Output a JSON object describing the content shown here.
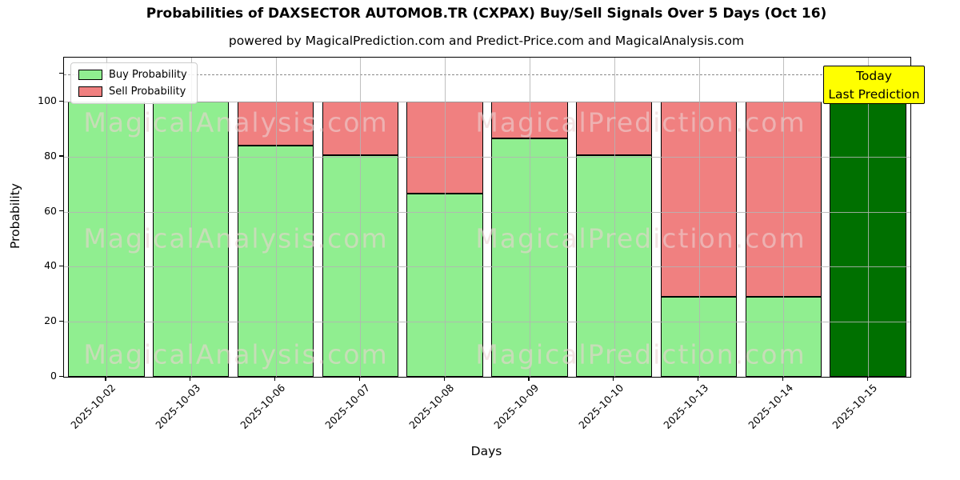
{
  "header": {
    "title": "Probabilities of DAXSECTOR AUTOMOB.TR (CXPAX) Buy/Sell Signals Over 5 Days (Oct 16)",
    "subtitle": "powered by MagicalPrediction.com and Predict-Price.com and MagicalAnalysis.com"
  },
  "legend": {
    "items": [
      {
        "label": "Buy Probability",
        "color": "#90EE90"
      },
      {
        "label": "Sell Probability",
        "color": "#F08080"
      }
    ]
  },
  "annotation": {
    "line1": "Today",
    "line2": "Last Prediction",
    "bg_color": "#FFFF00"
  },
  "watermarks": {
    "left_text": "MagicalAnalysis.com",
    "right_text": "MagicalPrediction.com"
  },
  "axes": {
    "xlabel": "Days",
    "ylabel": "Probability"
  },
  "chart_data": {
    "type": "bar",
    "stacked": true,
    "categories": [
      "2025-10-02",
      "2025-10-03",
      "2025-10-06",
      "2025-10-07",
      "2025-10-08",
      "2025-10-09",
      "2025-10-10",
      "2025-10-13",
      "2025-10-14",
      "2025-10-15"
    ],
    "series": [
      {
        "name": "Buy Probability",
        "color": "#90EE90",
        "values": [
          100,
          100,
          84,
          80.5,
          66.7,
          86.5,
          80.5,
          29,
          29,
          100
        ]
      },
      {
        "name": "Sell Probability",
        "color": "#F08080",
        "values": [
          0,
          0,
          16,
          19.5,
          33.3,
          13.5,
          19.5,
          71,
          71,
          0
        ]
      }
    ],
    "today_bar": {
      "index": 9,
      "color": "#007000",
      "note": "Today / Last Prediction"
    },
    "threshold_line": {
      "y": 110,
      "style": "dashed",
      "color": "#8a8a8a"
    },
    "title": "Probabilities of DAXSECTOR AUTOMOB.TR (CXPAX) Buy/Sell Signals Over 5 Days (Oct 16)",
    "xlabel": "Days",
    "ylabel": "Probability",
    "ylim": [
      0,
      116
    ],
    "yticks": [
      0,
      20,
      40,
      60,
      80,
      100
    ],
    "grid": true,
    "legend_position": "upper-left",
    "bar_width_fraction": 0.9
  }
}
